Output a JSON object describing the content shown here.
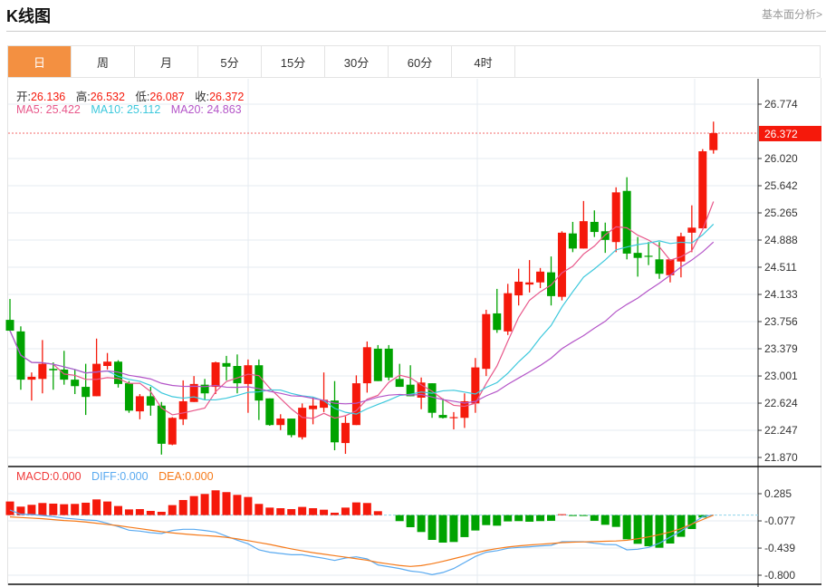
{
  "header": {
    "title": "K线图",
    "fundamental_link": "基本面分析>"
  },
  "tabs": [
    {
      "label": "日",
      "active": true
    },
    {
      "label": "周"
    },
    {
      "label": "月"
    },
    {
      "label": "5分"
    },
    {
      "label": "15分"
    },
    {
      "label": "30分"
    },
    {
      "label": "60分"
    },
    {
      "label": "4时"
    }
  ],
  "ohlc_legend": {
    "open_label": "开:",
    "open": "26.136",
    "high_label": "高:",
    "high": "26.532",
    "low_label": "低:",
    "low": "26.087",
    "close_label": "收:",
    "close": "26.372"
  },
  "ma_legend": {
    "ma5": "MA5: 25.422",
    "ma10": "MA10: 25.112",
    "ma20": "MA20: 24.863"
  },
  "macd_legend": {
    "macd": "MACD:0.000",
    "diff": "DIFF:0.000",
    "dea": "DEA:0.000"
  },
  "colors": {
    "up": "#f5190b",
    "down": "#00a300",
    "ma5": "#e8578a",
    "ma10": "#3cc8dc",
    "ma20": "#b455c8",
    "diff": "#5aaaf0",
    "dea": "#f57a1a",
    "accent": "#f39041"
  },
  "chart_data": [
    {
      "type": "candlestick",
      "title": "K线图",
      "ylim": [
        21.87,
        26.774
      ],
      "yticks": [
        "26.774",
        "26.020",
        "25.642",
        "25.265",
        "24.888",
        "24.511",
        "24.133",
        "23.756",
        "23.379",
        "23.001",
        "22.624",
        "22.247",
        "21.870"
      ],
      "ytick_values": [
        26.774,
        26.02,
        25.642,
        25.265,
        24.888,
        24.511,
        24.133,
        23.756,
        23.379,
        23.001,
        22.624,
        22.247,
        21.87
      ],
      "last_price": 26.372,
      "last_price_label": "26.372",
      "ma_periods": [
        5,
        10,
        20
      ],
      "ohlc": [
        [
          23.78,
          24.07,
          23.62,
          23.63
        ],
        [
          23.62,
          23.69,
          22.81,
          22.95
        ],
        [
          22.95,
          23.05,
          22.66,
          22.99
        ],
        [
          22.96,
          23.5,
          22.76,
          23.17
        ],
        [
          23.1,
          23.19,
          22.81,
          23.08
        ],
        [
          23.09,
          23.35,
          22.88,
          22.95
        ],
        [
          22.95,
          23.09,
          22.75,
          22.86
        ],
        [
          22.85,
          23.17,
          22.46,
          22.71
        ],
        [
          22.72,
          23.52,
          22.72,
          23.17
        ],
        [
          23.14,
          23.32,
          23.09,
          23.2
        ],
        [
          23.2,
          23.22,
          22.84,
          22.89
        ],
        [
          22.9,
          22.93,
          22.49,
          22.52
        ],
        [
          22.51,
          22.75,
          22.4,
          22.72
        ],
        [
          22.72,
          22.85,
          22.45,
          22.59
        ],
        [
          22.59,
          22.64,
          21.91,
          22.06
        ],
        [
          22.05,
          22.43,
          22.04,
          22.42
        ],
        [
          22.4,
          22.94,
          22.32,
          22.65
        ],
        [
          22.64,
          23.0,
          22.64,
          22.89
        ],
        [
          22.88,
          22.96,
          22.67,
          22.76
        ],
        [
          22.85,
          23.2,
          22.75,
          23.19
        ],
        [
          23.18,
          23.28,
          22.94,
          23.13
        ],
        [
          23.14,
          23.3,
          22.76,
          22.9
        ],
        [
          22.89,
          23.23,
          22.49,
          23.15
        ],
        [
          23.15,
          23.23,
          22.39,
          22.66
        ],
        [
          22.69,
          22.69,
          22.31,
          22.32
        ],
        [
          22.32,
          22.47,
          22.25,
          22.41
        ],
        [
          22.41,
          22.41,
          22.15,
          22.18
        ],
        [
          22.15,
          22.62,
          22.12,
          22.56
        ],
        [
          22.54,
          22.71,
          22.33,
          22.59
        ],
        [
          22.56,
          23.05,
          22.5,
          22.67
        ],
        [
          22.66,
          22.93,
          21.97,
          22.08
        ],
        [
          22.07,
          22.44,
          21.92,
          22.35
        ],
        [
          22.32,
          23.01,
          22.32,
          22.9
        ],
        [
          22.9,
          23.48,
          22.77,
          23.4
        ],
        [
          23.38,
          23.43,
          22.93,
          22.93
        ],
        [
          23.38,
          23.43,
          22.94,
          22.98
        ],
        [
          22.96,
          23.17,
          22.85,
          22.85
        ],
        [
          22.88,
          23.15,
          22.72,
          22.72
        ],
        [
          22.7,
          22.98,
          22.54,
          22.91
        ],
        [
          22.9,
          22.9,
          22.42,
          22.49
        ],
        [
          22.46,
          22.69,
          22.41,
          22.42
        ],
        [
          22.42,
          22.5,
          22.26,
          22.43
        ],
        [
          22.42,
          22.76,
          22.28,
          22.65
        ],
        [
          22.62,
          23.25,
          22.49,
          23.12
        ],
        [
          23.1,
          23.92,
          23.0,
          23.86
        ],
        [
          23.87,
          24.21,
          23.6,
          23.64
        ],
        [
          23.62,
          24.28,
          23.57,
          24.15
        ],
        [
          24.12,
          24.49,
          23.98,
          24.31
        ],
        [
          24.27,
          24.61,
          24.16,
          24.3
        ],
        [
          24.3,
          24.5,
          24.22,
          24.45
        ],
        [
          24.44,
          24.66,
          23.98,
          24.11
        ],
        [
          24.1,
          25.01,
          24.05,
          24.99
        ],
        [
          24.98,
          25.14,
          24.72,
          24.77
        ],
        [
          24.77,
          25.43,
          24.77,
          25.15
        ],
        [
          25.14,
          25.3,
          24.93,
          25.0
        ],
        [
          25.01,
          25.13,
          24.71,
          24.89
        ],
        [
          24.86,
          25.62,
          24.72,
          25.55
        ],
        [
          25.57,
          25.76,
          24.62,
          24.7
        ],
        [
          24.71,
          24.93,
          24.38,
          24.64
        ],
        [
          24.67,
          24.86,
          24.54,
          24.66
        ],
        [
          24.62,
          24.86,
          24.35,
          24.42
        ],
        [
          24.4,
          24.62,
          24.3,
          24.62
        ],
        [
          24.59,
          24.99,
          24.37,
          24.94
        ],
        [
          24.99,
          25.37,
          24.72,
          25.06
        ],
        [
          25.05,
          26.15,
          25.05,
          26.12
        ],
        [
          26.136,
          26.532,
          26.087,
          26.372
        ]
      ]
    },
    {
      "type": "bar+line",
      "title": "MACD",
      "ylim": [
        -0.8,
        0.285
      ],
      "yticks": [
        "0.285",
        "-0.077",
        "-0.439",
        "-0.800"
      ],
      "ytick_values": [
        0.285,
        -0.077,
        -0.439,
        -0.8
      ],
      "macd": [
        0.181,
        0.113,
        0.137,
        0.161,
        0.153,
        0.145,
        0.149,
        0.165,
        0.209,
        0.181,
        0.121,
        0.076,
        0.08,
        0.056,
        0.044,
        0.133,
        0.201,
        0.253,
        0.281,
        0.33,
        0.306,
        0.269,
        0.241,
        0.149,
        0.1,
        0.092,
        0.08,
        0.109,
        0.092,
        0.072,
        0.032,
        0.1,
        0.169,
        0.161,
        0.052,
        0,
        -0.08,
        -0.161,
        -0.225,
        -0.33,
        -0.366,
        -0.358,
        -0.293,
        -0.205,
        -0.133,
        -0.141,
        -0.084,
        -0.08,
        -0.088,
        -0.08,
        -0.076,
        0.012,
        -0.012,
        -0.008,
        -0.076,
        -0.129,
        -0.157,
        -0.322,
        -0.382,
        -0.414,
        -0.434,
        -0.378,
        -0.289,
        -0.185,
        -0.032,
        0
      ],
      "diff": [
        0.068,
        0.012,
        0.008,
        -0.004,
        -0.02,
        -0.04,
        -0.052,
        -0.064,
        -0.072,
        -0.109,
        -0.153,
        -0.201,
        -0.213,
        -0.233,
        -0.245,
        -0.205,
        -0.189,
        -0.189,
        -0.205,
        -0.225,
        -0.281,
        -0.334,
        -0.382,
        -0.462,
        -0.494,
        -0.511,
        -0.527,
        -0.527,
        -0.551,
        -0.575,
        -0.603,
        -0.571,
        -0.555,
        -0.583,
        -0.663,
        -0.687,
        -0.711,
        -0.744,
        -0.76,
        -0.792,
        -0.764,
        -0.711,
        -0.631,
        -0.551,
        -0.494,
        -0.474,
        -0.442,
        -0.43,
        -0.422,
        -0.41,
        -0.402,
        -0.354,
        -0.354,
        -0.354,
        -0.374,
        -0.39,
        -0.394,
        -0.462,
        -0.454,
        -0.43,
        -0.374,
        -0.293,
        -0.213,
        -0.121,
        -0.02,
        0
      ],
      "dea": [
        -0.024,
        -0.032,
        -0.04,
        -0.048,
        -0.06,
        -0.072,
        -0.08,
        -0.092,
        -0.108,
        -0.124,
        -0.14,
        -0.16,
        -0.18,
        -0.2,
        -0.22,
        -0.236,
        -0.25,
        -0.262,
        -0.272,
        -0.282,
        -0.296,
        -0.316,
        -0.34,
        -0.365,
        -0.39,
        -0.42,
        -0.45,
        -0.475,
        -0.5,
        -0.52,
        -0.54,
        -0.56,
        -0.58,
        -0.6,
        -0.63,
        -0.65,
        -0.67,
        -0.683,
        -0.672,
        -0.647,
        -0.615,
        -0.58,
        -0.545,
        -0.505,
        -0.47,
        -0.445,
        -0.425,
        -0.41,
        -0.398,
        -0.388,
        -0.378,
        -0.366,
        -0.36,
        -0.356,
        -0.352,
        -0.348,
        -0.344,
        -0.335,
        -0.315,
        -0.29,
        -0.26,
        -0.225,
        -0.18,
        -0.12,
        -0.06,
        0
      ]
    }
  ]
}
